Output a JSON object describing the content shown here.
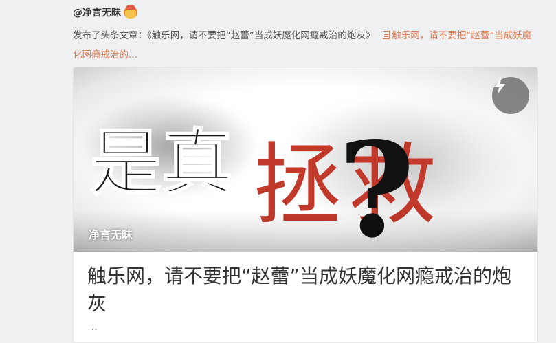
{
  "post": {
    "author": "@净言无昧",
    "prefix": "发布了头条文章：",
    "article_quote": "《触乐网，请不要把“赵蕾”当成妖魔化网瘾戒治的炮灰》",
    "link_text_line1": "触乐网，请不要把“",
    "link_text_full": "触乐网，请不要把“赵蕾”当成妖魔化网瘾戒治的..."
  },
  "card": {
    "cover_text_left": "是真",
    "cover_text_right": "拯救",
    "cover_question": "?",
    "source_tag": "净言无昧",
    "title": "触乐网，请不要把“赵蕾”当成妖魔化网瘾戒治的炮灰",
    "summary": "…",
    "icon": "lightning-icon"
  },
  "colors": {
    "accent_link": "#e07a4f",
    "cover_red": "#c0392b"
  }
}
